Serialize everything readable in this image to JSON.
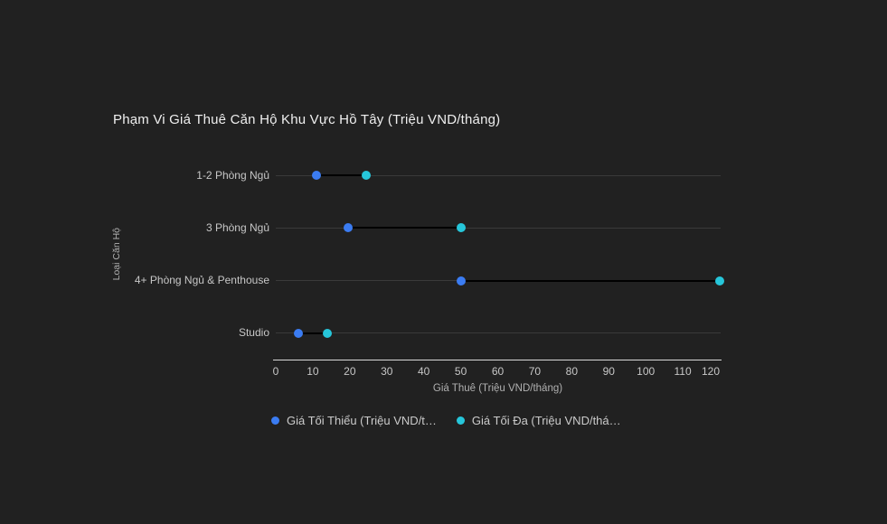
{
  "page": {
    "background": "#212121"
  },
  "chart_data": {
    "type": "scatter",
    "subtype": "dumbbell_range",
    "title": "Phạm Vi Giá Thuê Căn Hộ Khu Vực Hồ Tây (Triệu VND/tháng)",
    "xlabel": "Giá Thuê (Triệu VND/tháng)",
    "ylabel": "Loại Căn Hộ",
    "categories": [
      "1-2 Phòng Ngủ",
      "3 Phòng Ngủ",
      "4+ Phòng Ngủ & Penthouse",
      "Studio"
    ],
    "series": [
      {
        "name": "Giá Tối Thiểu (Triệu VND/t…",
        "color": "#3b7cf2",
        "values": [
          11,
          19.5,
          50,
          6
        ]
      },
      {
        "name": "Giá Tối Đa (Triệu VND/thá…",
        "color": "#26c6da",
        "values": [
          24.5,
          50,
          120,
          14
        ]
      }
    ],
    "x_ticks": [
      0,
      10,
      20,
      30,
      40,
      50,
      60,
      70,
      80,
      90,
      100,
      110,
      120
    ],
    "xlim": [
      0,
      120
    ],
    "grid": "horizontal-category-lines",
    "legend_position": "bottom",
    "legend": [
      {
        "label": "Giá Tối Thiểu (Triệu VND/t…",
        "color": "#3b7cf2"
      },
      {
        "label": "Giá Tối Đa (Triệu VND/thá…",
        "color": "#26c6da"
      }
    ],
    "colors": {
      "background": "#212121",
      "gridline": "#3a3a3a",
      "axis_line": "#d9d9d9",
      "connector": "#000000",
      "title_text": "#efefef",
      "tick_text": "#c7c7c7",
      "axis_title_text": "#b0b0b0",
      "legend_text": "#cbcbcb"
    }
  }
}
